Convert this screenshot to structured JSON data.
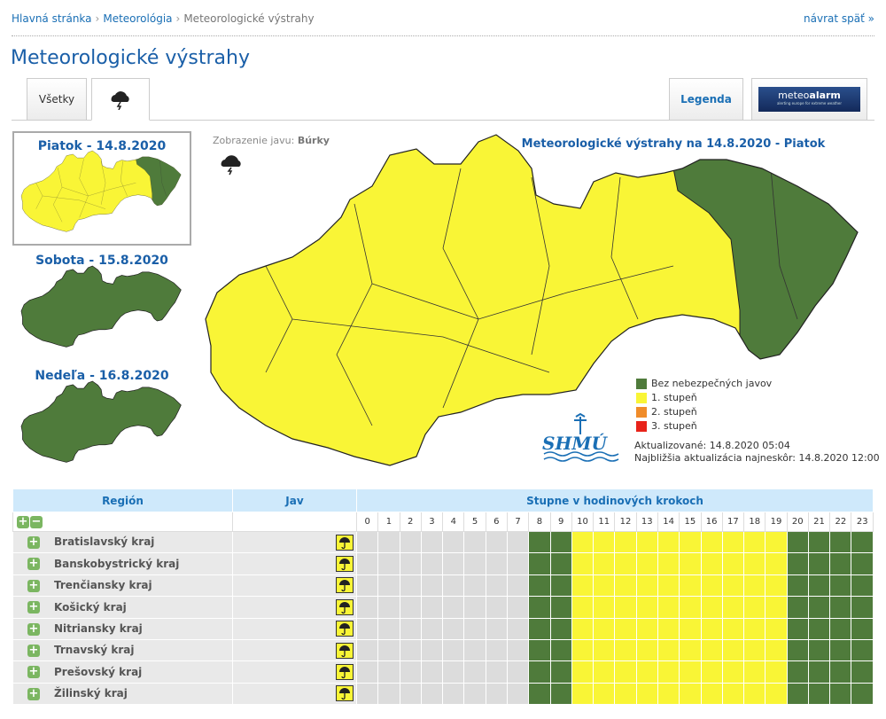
{
  "breadcrumb": [
    "Hlavná stránka",
    "Meteorológia",
    "Meteorologické výstrahy"
  ],
  "back_link": "návrat späť »",
  "title": "Meteorologické výstrahy",
  "tabs": {
    "all": "Všetky",
    "legend": "Legenda",
    "logo": {
      "part1": "meteo",
      "part2": "alarm",
      "tagline": "alerting europe for extreme weather"
    }
  },
  "days": [
    "Piatok - 14.8.2020",
    "Sobota - 15.8.2020",
    "Nedeľa - 16.8.2020"
  ],
  "phenomenon": {
    "label": "Zobrazenie javu:",
    "value": "Búrky"
  },
  "map_title": "Meteorologické výstrahy na 14.8.2020 - Piatok",
  "legend": [
    {
      "label": "Bez nebezpečných javov",
      "color": "#4f7b3b"
    },
    {
      "label": "1. stupeň",
      "color": "#f9f536"
    },
    {
      "label": "2. stupeň",
      "color": "#f08c2a"
    },
    {
      "label": "3. stupeň",
      "color": "#e8231a"
    }
  ],
  "updated": "Aktualizované: 14.8.2020 05:04",
  "next_update": "Najbližšia aktualizácia najneskôr: 14.8.2020 12:00",
  "shmu_logo": "SHMÚ",
  "table": {
    "headers": [
      "Región",
      "Jav",
      "Stupne v hodinových krokoch"
    ],
    "hours": [
      0,
      1,
      2,
      3,
      4,
      5,
      6,
      7,
      8,
      9,
      10,
      11,
      12,
      13,
      14,
      15,
      16,
      17,
      18,
      19,
      20,
      21,
      22,
      23
    ],
    "rows": [
      {
        "name": "Bratislavský kraj",
        "levels": [
          null,
          null,
          null,
          null,
          null,
          null,
          null,
          null,
          0,
          0,
          1,
          1,
          1,
          1,
          1,
          1,
          1,
          1,
          1,
          1,
          0,
          0,
          0,
          0
        ]
      },
      {
        "name": "Banskobystrický kraj",
        "levels": [
          null,
          null,
          null,
          null,
          null,
          null,
          null,
          null,
          0,
          0,
          1,
          1,
          1,
          1,
          1,
          1,
          1,
          1,
          1,
          1,
          0,
          0,
          0,
          0
        ]
      },
      {
        "name": "Trenčiansky kraj",
        "levels": [
          null,
          null,
          null,
          null,
          null,
          null,
          null,
          null,
          0,
          0,
          1,
          1,
          1,
          1,
          1,
          1,
          1,
          1,
          1,
          1,
          0,
          0,
          0,
          0
        ]
      },
      {
        "name": "Košický kraj",
        "levels": [
          null,
          null,
          null,
          null,
          null,
          null,
          null,
          null,
          0,
          0,
          1,
          1,
          1,
          1,
          1,
          1,
          1,
          1,
          1,
          1,
          0,
          0,
          0,
          0
        ]
      },
      {
        "name": "Nitriansky kraj",
        "levels": [
          null,
          null,
          null,
          null,
          null,
          null,
          null,
          null,
          0,
          0,
          1,
          1,
          1,
          1,
          1,
          1,
          1,
          1,
          1,
          1,
          0,
          0,
          0,
          0
        ]
      },
      {
        "name": "Trnavský kraj",
        "levels": [
          null,
          null,
          null,
          null,
          null,
          null,
          null,
          null,
          0,
          0,
          1,
          1,
          1,
          1,
          1,
          1,
          1,
          1,
          1,
          1,
          0,
          0,
          0,
          0
        ]
      },
      {
        "name": "Prešovský kraj",
        "levels": [
          null,
          null,
          null,
          null,
          null,
          null,
          null,
          null,
          0,
          0,
          1,
          1,
          1,
          1,
          1,
          1,
          1,
          1,
          1,
          1,
          0,
          0,
          0,
          0
        ]
      },
      {
        "name": "Žilinský kraj",
        "levels": [
          null,
          null,
          null,
          null,
          null,
          null,
          null,
          null,
          0,
          0,
          1,
          1,
          1,
          1,
          1,
          1,
          1,
          1,
          1,
          1,
          0,
          0,
          0,
          0
        ]
      }
    ]
  }
}
